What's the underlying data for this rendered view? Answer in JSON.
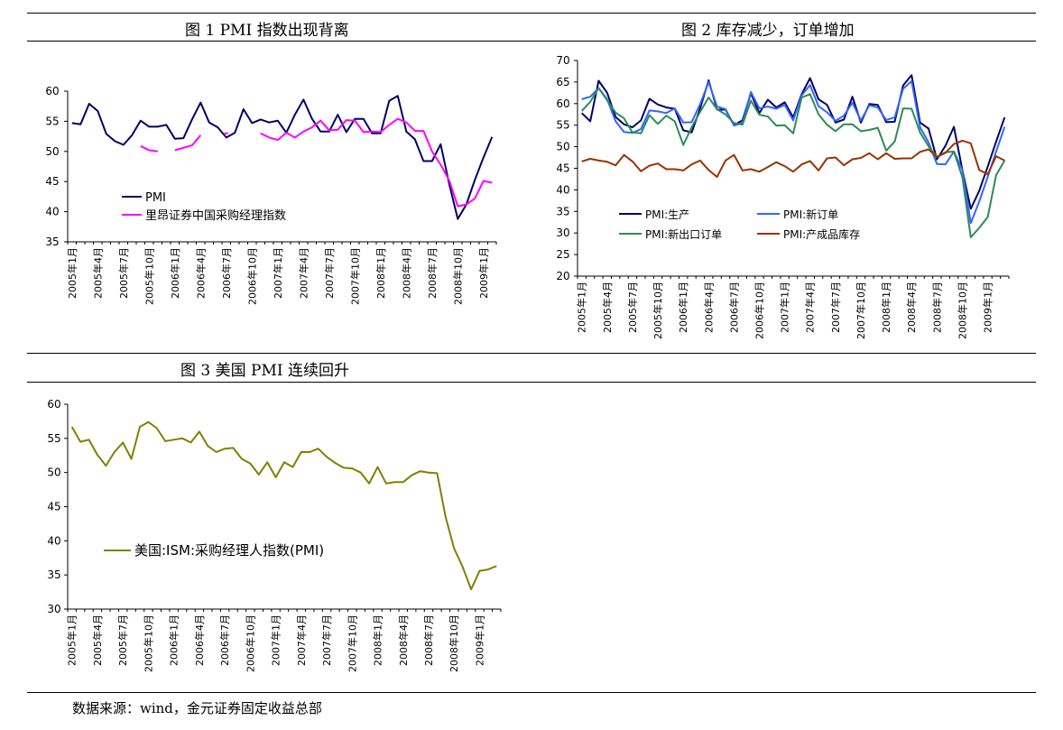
{
  "panels": {
    "p1": {
      "title": "图 1 PMI 指数出现背离"
    },
    "p2": {
      "title": "图 2 库存减少，订单增加"
    },
    "p3": {
      "title": "图 3 美国 PMI 连续回升"
    }
  },
  "source": "数据来源：wind，金元证券固定收益总部",
  "chart_data": [
    {
      "type": "line",
      "title": "图 1 PMI 指数出现背离",
      "x_tick_labels": [
        "2005年1月",
        "2005年4月",
        "2005年7月",
        "2005年10月",
        "2006年1月",
        "2006年4月",
        "2006年7月",
        "2006年10月",
        "2007年1月",
        "2007年4月",
        "2007年7月",
        "2007年10月",
        "2008年1月",
        "2008年4月",
        "2008年7月",
        "2008年10月",
        "2009年1月"
      ],
      "ylim": [
        35,
        60
      ],
      "yticks": [
        35,
        40,
        45,
        50,
        55,
        60
      ],
      "legend_position": "lower-left",
      "series": [
        {
          "name": "PMI",
          "color": "#000066",
          "values": [
            54.7,
            54.5,
            57.9,
            56.7,
            52.9,
            51.7,
            51.1,
            52.7,
            55.1,
            54.1,
            54.1,
            54.4,
            52.1,
            52.2,
            55.3,
            58.1,
            54.8,
            54.0,
            52.3,
            53.1,
            57.0,
            54.7,
            55.3,
            54.8,
            55.1,
            53.1,
            56.1,
            58.6,
            55.4,
            53.3,
            53.3,
            56.1,
            53.2,
            55.4,
            55.4,
            53.0,
            53.0,
            58.4,
            59.2,
            53.3,
            52.0,
            48.4,
            48.4,
            51.2,
            44.6,
            38.8,
            41.2,
            45.3,
            49.0,
            52.4
          ]
        },
        {
          "name": "里昂证券中国采购经理指数",
          "color": "#ff00ff",
          "values": [
            null,
            null,
            null,
            null,
            null,
            null,
            null,
            null,
            50.9,
            50.2,
            50.0,
            null,
            50.2,
            50.6,
            51.0,
            52.7,
            null,
            null,
            53.0,
            null,
            null,
            null,
            53.0,
            52.3,
            51.9,
            53.1,
            52.3,
            53.3,
            54.0,
            55.1,
            53.5,
            53.6,
            55.2,
            55.1,
            53.2,
            53.3,
            53.2,
            54.4,
            55.4,
            54.8,
            53.4,
            53.4,
            50.0,
            47.8,
            45.2,
            40.9,
            41.2,
            42.2,
            45.1,
            44.8
          ]
        }
      ]
    },
    {
      "type": "line",
      "title": "图 2 库存减少，订单增加",
      "x_tick_labels": [
        "2005年1月",
        "2005年4月",
        "2005年7月",
        "2005年10月",
        "2006年1月",
        "2006年4月",
        "2006年7月",
        "2006年10月",
        "2007年1月",
        "2007年4月",
        "2007年7月",
        "2007年10月",
        "2008年1月",
        "2008年4月",
        "2008年7月",
        "2008年10月",
        "2009年1月"
      ],
      "ylim": [
        20,
        70
      ],
      "yticks": [
        20,
        25,
        30,
        35,
        40,
        45,
        50,
        55,
        60,
        65,
        70
      ],
      "legend_position": "lower-left",
      "series": [
        {
          "name": "PMI:生产",
          "color": "#000066",
          "values": [
            57.8,
            55.9,
            65.3,
            62.5,
            56.9,
            55.2,
            54.5,
            56.1,
            61.1,
            59.8,
            59.1,
            58.8,
            53.8,
            53.3,
            58.9,
            65.4,
            58.6,
            58.6,
            55.0,
            56.1,
            62.4,
            57.8,
            60.9,
            59.1,
            60.3,
            56.8,
            62.2,
            65.9,
            61.0,
            59.7,
            55.6,
            56.3,
            61.6,
            55.6,
            59.9,
            59.7,
            55.7,
            55.8,
            64.2,
            66.6,
            55.6,
            54.2,
            47.1,
            50.2,
            54.6,
            44.6,
            35.6,
            39.8,
            45.4,
            51.2,
            56.8
          ]
        },
        {
          "name": "PMI:新订单",
          "color": "#3366ff",
          "values": [
            61.0,
            61.6,
            63.6,
            61.0,
            55.9,
            53.4,
            53.2,
            54.1,
            58.4,
            58.2,
            57.8,
            58.9,
            55.6,
            55.7,
            59.9,
            65.0,
            59.3,
            58.7,
            54.9,
            55.5,
            62.7,
            58.9,
            59.3,
            58.8,
            59.7,
            56.1,
            61.9,
            64.3,
            59.4,
            58.0,
            56.0,
            57.2,
            60.2,
            56.1,
            59.6,
            59.1,
            56.2,
            56.8,
            63.4,
            65.2,
            54.5,
            51.0,
            46.0,
            45.9,
            48.9,
            44.6,
            32.3,
            37.3,
            43.0,
            48.9,
            54.6
          ]
        },
        {
          "name": "PMI:新出口订单",
          "color": "#2e8b57",
          "values": [
            58.3,
            60.4,
            63.6,
            60.8,
            57.9,
            56.6,
            53.3,
            53.1,
            57.3,
            55.3,
            57.2,
            55.9,
            50.4,
            54.5,
            58.1,
            61.4,
            58.7,
            57.5,
            55.5,
            55.1,
            60.7,
            57.4,
            57.0,
            54.9,
            55.0,
            53.1,
            61.4,
            62.2,
            57.5,
            55.1,
            53.6,
            55.2,
            55.2,
            53.6,
            53.9,
            54.4,
            49.1,
            51.2,
            58.9,
            58.8,
            53.3,
            50.1,
            47.7,
            48.7,
            48.9,
            42.9,
            29.0,
            31.2,
            33.7,
            43.4,
            46.8
          ]
        },
        {
          "name": "PMI:产成品库存",
          "color": "#993300",
          "values": [
            46.6,
            47.2,
            46.8,
            46.5,
            45.7,
            48.1,
            46.6,
            44.3,
            45.6,
            46.1,
            44.8,
            44.8,
            44.5,
            45.9,
            46.8,
            44.6,
            43.0,
            46.8,
            48.1,
            44.5,
            44.8,
            44.2,
            45.3,
            46.4,
            45.5,
            44.2,
            45.9,
            46.7,
            44.5,
            47.3,
            47.5,
            45.7,
            47.1,
            47.4,
            48.5,
            47.1,
            48.5,
            47.2,
            47.3,
            47.3,
            48.8,
            49.4,
            47.6,
            48.6,
            50.6,
            51.4,
            50.8,
            44.6,
            43.6,
            47.8,
            46.8
          ]
        }
      ]
    },
    {
      "type": "line",
      "title": "图 3 美国 PMI 连续回升",
      "x_tick_labels": [
        "2005年1月",
        "2005年4月",
        "2005年7月",
        "2005年10月",
        "2006年1月",
        "2006年4月",
        "2006年7月",
        "2006年10月",
        "2007年1月",
        "2007年4月",
        "2007年7月",
        "2007年10月",
        "2008年1月",
        "2008年4月",
        "2008年7月",
        "2008年10月",
        "2009年1月"
      ],
      "ylim": [
        30,
        60
      ],
      "yticks": [
        30,
        35,
        40,
        45,
        50,
        55,
        60
      ],
      "legend_position": "lower-left",
      "series": [
        {
          "name": "美国:ISM:采购经理人指数(PMI)",
          "color": "#808000",
          "values": [
            56.7,
            54.5,
            54.8,
            52.6,
            51.0,
            53.0,
            54.4,
            52.0,
            56.7,
            57.4,
            56.5,
            54.6,
            54.8,
            55.0,
            54.4,
            56.0,
            53.9,
            53.0,
            53.5,
            53.6,
            52.0,
            51.3,
            49.7,
            51.5,
            49.3,
            51.5,
            50.8,
            53.0,
            53.0,
            53.5,
            52.3,
            51.4,
            50.7,
            50.6,
            50.0,
            48.4,
            50.8,
            48.4,
            48.6,
            48.6,
            49.6,
            50.2,
            50.0,
            49.9,
            43.5,
            38.9,
            36.2,
            32.9,
            35.6,
            35.8,
            36.3
          ]
        }
      ]
    }
  ]
}
